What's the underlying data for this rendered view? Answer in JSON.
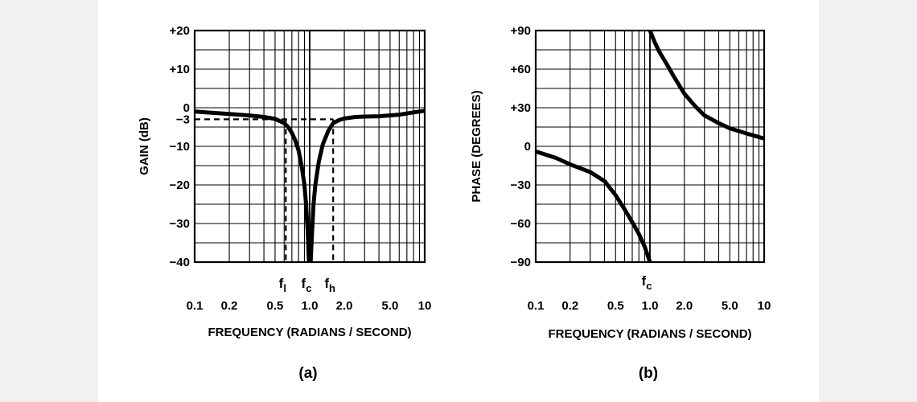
{
  "chart_data": [
    {
      "type": "line",
      "caption": "(a)",
      "xscale": "log",
      "xlim": [
        0.1,
        10
      ],
      "ylim": [
        -40,
        20
      ],
      "grid": true,
      "xlabel": "FREQUENCY (RADIANS / SECOND)",
      "ylabel": "GAIN (dB)",
      "x_ticks": [
        {
          "v": 0.1,
          "label": "0.1"
        },
        {
          "v": 0.2,
          "label": "0.2"
        },
        {
          "v": 0.5,
          "label": "0.5"
        },
        {
          "v": 1.0,
          "label": "1.0"
        },
        {
          "v": 2.0,
          "label": "2.0"
        },
        {
          "v": 5.0,
          "label": "5.0"
        },
        {
          "v": 10,
          "label": "10"
        }
      ],
      "y_ticks": [
        {
          "v": 20,
          "label": "+20"
        },
        {
          "v": 10,
          "label": "+10"
        },
        {
          "v": 0,
          "label": "0"
        },
        {
          "v": -3,
          "label": "−3"
        },
        {
          "v": -10,
          "label": "−10"
        },
        {
          "v": -20,
          "label": "−20"
        },
        {
          "v": -30,
          "label": "−30"
        },
        {
          "v": -40,
          "label": "−40"
        }
      ],
      "freq_labels": [
        {
          "v": 0.62,
          "main": "f",
          "sub": "l"
        },
        {
          "v": 1.0,
          "main": "f",
          "sub": "c"
        },
        {
          "v": 1.6,
          "main": "f",
          "sub": "h"
        }
      ],
      "reference": {
        "gain_db": -3,
        "f_low": 0.62,
        "f_high": 1.6
      },
      "series": [
        {
          "name": "gain-left",
          "x": [
            0.1,
            0.2,
            0.3,
            0.4,
            0.5,
            0.6,
            0.65,
            0.7,
            0.75,
            0.8,
            0.85,
            0.9,
            0.93,
            0.96,
            0.985
          ],
          "y": [
            -1,
            -1.6,
            -2,
            -2.4,
            -2.9,
            -4,
            -5,
            -6.5,
            -8.5,
            -11,
            -15,
            -20,
            -25,
            -32,
            -40
          ]
        },
        {
          "name": "gain-right",
          "x": [
            1.02,
            1.05,
            1.08,
            1.12,
            1.2,
            1.3,
            1.45,
            1.6,
            1.8,
            2.0,
            2.5,
            3.0,
            4.0,
            6.0,
            8.0,
            10.0
          ],
          "y": [
            -40,
            -32,
            -25,
            -20,
            -14,
            -9.5,
            -6,
            -4,
            -3.2,
            -2.8,
            -2.4,
            -2.3,
            -2.2,
            -1.8,
            -1.2,
            -0.8
          ]
        }
      ]
    },
    {
      "type": "line",
      "caption": "(b)",
      "xscale": "log",
      "xlim": [
        0.1,
        10
      ],
      "ylim": [
        -90,
        90
      ],
      "grid": true,
      "xlabel": "FREQUENCY  (RADIANS / SECOND)",
      "ylabel": "PHASE (DEGREES)",
      "x_ticks": [
        {
          "v": 0.1,
          "label": "0.1"
        },
        {
          "v": 0.2,
          "label": "0.2"
        },
        {
          "v": 0.5,
          "label": "0.5"
        },
        {
          "v": 1.0,
          "label": "1.0"
        },
        {
          "v": 2.0,
          "label": "2.0"
        },
        {
          "v": 5.0,
          "label": "5.0"
        },
        {
          "v": 10,
          "label": "10"
        }
      ],
      "y_ticks": [
        {
          "v": 90,
          "label": "+90"
        },
        {
          "v": 60,
          "label": "+60"
        },
        {
          "v": 30,
          "label": "+30"
        },
        {
          "v": 0,
          "label": "0"
        },
        {
          "v": -30,
          "label": "−30"
        },
        {
          "v": -60,
          "label": "−60"
        },
        {
          "v": -90,
          "label": "−90"
        }
      ],
      "freq_labels": [
        {
          "v": 1.0,
          "main": "f",
          "sub": "c"
        }
      ],
      "series": [
        {
          "name": "phase-left",
          "x": [
            0.1,
            0.15,
            0.2,
            0.3,
            0.4,
            0.5,
            0.6,
            0.7,
            0.8,
            0.9,
            0.95,
            1.0
          ],
          "y": [
            -4,
            -9,
            -14,
            -20,
            -27,
            -38,
            -49,
            -59,
            -68,
            -78,
            -84,
            -90
          ]
        },
        {
          "name": "phase-right",
          "x": [
            1.0,
            1.1,
            1.2,
            1.4,
            1.6,
            2.0,
            2.5,
            3.0,
            4.0,
            5.0,
            7.0,
            10.0
          ],
          "y": [
            90,
            81,
            74,
            64,
            55,
            41,
            31,
            24,
            18,
            14,
            10,
            6
          ]
        }
      ]
    }
  ]
}
